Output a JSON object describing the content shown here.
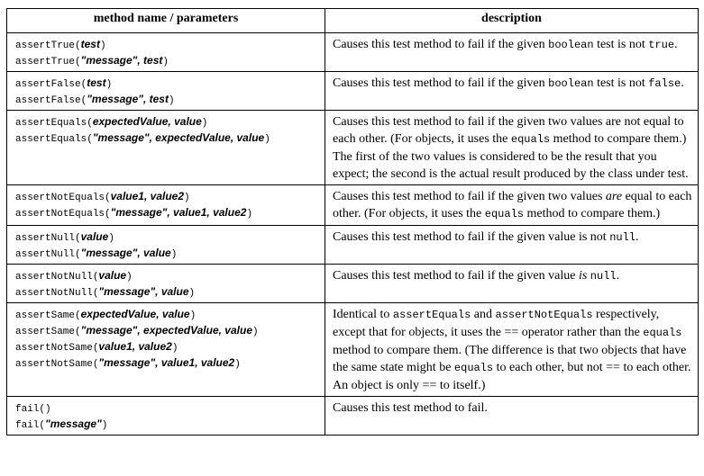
{
  "header": {
    "col1": "method name / parameters",
    "col2": "description"
  },
  "rows": [
    {
      "sig": [
        {
          "n": "assertTrue(",
          "p": "test",
          "c": ")"
        },
        {
          "n": "assertTrue(",
          "p": "\"message\", test",
          "c": ")"
        }
      ],
      "desc": [
        "Causes this test method to fail if the given ",
        {
          "code": "boolean"
        },
        " test is not ",
        {
          "code": "true"
        },
        "."
      ]
    },
    {
      "sig": [
        {
          "n": "assertFalse(",
          "p": "test",
          "c": ")"
        },
        {
          "n": "assertFalse(",
          "p": "\"message\", test",
          "c": ")"
        }
      ],
      "desc": [
        "Causes this test method to fail if the given ",
        {
          "code": "boolean"
        },
        " test is not ",
        {
          "code": "false"
        },
        "."
      ]
    },
    {
      "sig": [
        {
          "n": "assertEquals(",
          "p": "expectedValue, value",
          "c": ")"
        },
        {
          "n": "assertEquals(",
          "p": "\"message\", expectedValue, value",
          "c": ")"
        }
      ],
      "desc": [
        "Causes this test method to fail if the given two values are not equal to each other. (For objects, it uses the ",
        {
          "code": "equals"
        },
        " method to compare them.) The first of the two values is considered to be the result that you expect; the second is the actual result produced by the class under test."
      ]
    },
    {
      "sig": [
        {
          "n": "assertNotEquals(",
          "p": "value1, value2",
          "c": ")"
        },
        {
          "n": "assertNotEquals(",
          "p": "\"message\", value1, value2",
          "c": ")"
        }
      ],
      "desc": [
        "Causes this test method to fail if the given two values ",
        {
          "em": "are"
        },
        " equal to each other. (For objects, it uses the ",
        {
          "code": "equals"
        },
        " method to compare them.)"
      ]
    },
    {
      "sig": [
        {
          "n": "assertNull(",
          "p": "value",
          "c": ")"
        },
        {
          "n": "assertNull(",
          "p": "\"message\", value",
          "c": ")"
        }
      ],
      "desc": [
        "Causes this test method to fail if the given value is not ",
        {
          "code": "null"
        },
        "."
      ]
    },
    {
      "sig": [
        {
          "n": "assertNotNull(",
          "p": "value",
          "c": ")"
        },
        {
          "n": "assertNotNull(",
          "p": "\"message\", value",
          "c": ")"
        }
      ],
      "desc": [
        "Causes this test method to fail if the given value ",
        {
          "em": "is"
        },
        " ",
        {
          "code": "null"
        },
        "."
      ]
    },
    {
      "sig": [
        {
          "n": "assertSame(",
          "p": "expectedValue, value",
          "c": ")"
        },
        {
          "n": "assertSame(",
          "p": "\"message\", expectedValue, value",
          "c": ")"
        },
        {
          "n": "assertNotSame(",
          "p": "value1, value2",
          "c": ")"
        },
        {
          "n": "assertNotSame(",
          "p": "\"message\", value1, value2",
          "c": ")"
        }
      ],
      "desc": [
        "Identical to ",
        {
          "code": "assertEquals"
        },
        " and ",
        {
          "code": "assertNotEquals"
        },
        " respectively, except that for objects, it uses the == operator rather than the ",
        {
          "code": "equals"
        },
        " method to compare them. (The difference is that two objects that have the same state might be ",
        {
          "code": "equals"
        },
        " to each other, but not == to each other. An object is only == to itself.)"
      ]
    },
    {
      "sig": [
        {
          "n": "fail(",
          "p": "",
          "c": ")"
        },
        {
          "n": "fail(",
          "p": "\"message\"",
          "c": ")"
        }
      ],
      "desc": [
        "Causes this test method to fail."
      ]
    }
  ]
}
